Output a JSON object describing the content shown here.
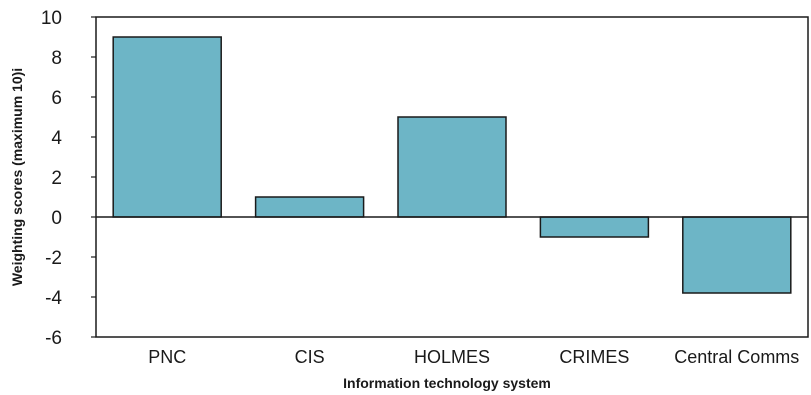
{
  "chart_data": {
    "type": "bar",
    "title": "",
    "xlabel": "Information technology system",
    "ylabel": "Weighting scores (maximum 10)i",
    "categories": [
      "PNC",
      "CIS",
      "HOLMES",
      "CRIMES",
      "Central Comms"
    ],
    "values": [
      9,
      1,
      5,
      -1,
      -3.8
    ],
    "ylim": [
      -6,
      10
    ],
    "yticks": [
      -6,
      -4,
      -2,
      0,
      2,
      4,
      6,
      8,
      10
    ],
    "ytick_labels": [
      "-6",
      "-4",
      "-2",
      "0",
      "2",
      "4",
      "6",
      "8",
      "10"
    ],
    "grid": false,
    "legend": "none",
    "bar_color": "#6db5c6",
    "bar_edge_color": "#1a1a1a"
  }
}
